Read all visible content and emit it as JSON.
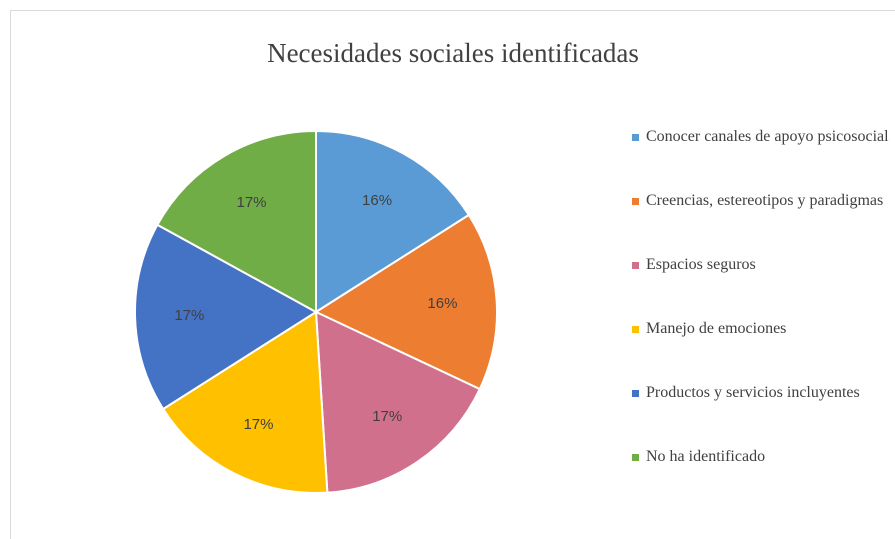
{
  "chart_data": {
    "type": "pie",
    "title": "Necesidades sociales identificadas",
    "categories": [
      "Conocer canales de apoyo psicosocial",
      "Creencias, estereotipos y paradigmas",
      "Espacios seguros",
      "Manejo de emociones",
      "Productos y servicios incluyentes",
      "No ha identificado"
    ],
    "values": [
      16,
      16,
      17,
      17,
      17,
      17
    ],
    "value_labels": [
      "16%",
      "16%",
      "17%",
      "17%",
      "17%",
      "17%"
    ],
    "colors": [
      "#5b9bd5",
      "#ed7d31",
      "#d0708c",
      "#ffc000",
      "#4472c4",
      "#70ad47"
    ],
    "legend": "right"
  }
}
